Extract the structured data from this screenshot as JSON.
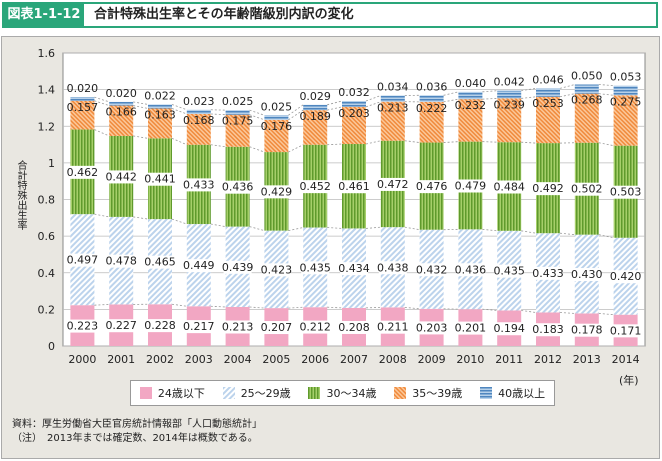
{
  "header": {
    "tag": "図表1-1-12",
    "title": "合計特殊出生率とその年齢階級別内訳の変化"
  },
  "chart_data": {
    "type": "bar",
    "stacked": true,
    "title": "",
    "xlabel": "",
    "xunit": "(年)",
    "ylabel": "合計特殊出生率",
    "ylim": [
      0,
      1.6
    ],
    "yticks": [
      0,
      0.2,
      0.4,
      0.6,
      0.8,
      1,
      1.2,
      1.4,
      1.6
    ],
    "grid": true,
    "legend_position": "bottom",
    "categories": [
      "2000",
      "2001",
      "2002",
      "2003",
      "2004",
      "2005",
      "2006",
      "2007",
      "2008",
      "2009",
      "2010",
      "2011",
      "2012",
      "2013",
      "2014"
    ],
    "series": [
      {
        "name": "24歳以下",
        "color": "#f2a7c3",
        "values": [
          0.223,
          0.227,
          0.228,
          0.217,
          0.213,
          0.207,
          0.212,
          0.208,
          0.211,
          0.203,
          0.201,
          0.194,
          0.183,
          0.178,
          0.171
        ]
      },
      {
        "name": "25～29歳",
        "color": "#bcd3ec",
        "values": [
          0.497,
          0.478,
          0.465,
          0.449,
          0.439,
          0.423,
          0.435,
          0.434,
          0.438,
          0.432,
          0.436,
          0.435,
          0.433,
          0.43,
          0.42
        ]
      },
      {
        "name": "30～34歳",
        "color": "#7fb23e",
        "values": [
          0.462,
          0.442,
          0.441,
          0.433,
          0.436,
          0.429,
          0.452,
          0.461,
          0.472,
          0.476,
          0.479,
          0.484,
          0.492,
          0.502,
          0.503
        ]
      },
      {
        "name": "35～39歳",
        "color": "#f59a52",
        "values": [
          0.157,
          0.166,
          0.163,
          0.168,
          0.175,
          0.176,
          0.189,
          0.203,
          0.213,
          0.222,
          0.232,
          0.239,
          0.253,
          0.268,
          0.275
        ]
      },
      {
        "name": "40歳以上",
        "color": "#6f9fcf",
        "values": [
          0.02,
          0.02,
          0.022,
          0.023,
          0.025,
          0.025,
          0.029,
          0.032,
          0.034,
          0.036,
          0.04,
          0.042,
          0.046,
          0.05,
          0.053
        ]
      }
    ]
  },
  "notes": {
    "source": "資料：厚生労働省大臣官房統計情報部「人口動態統計」",
    "note": "（注）　2013年までは確定数、2014年は概数である。"
  }
}
